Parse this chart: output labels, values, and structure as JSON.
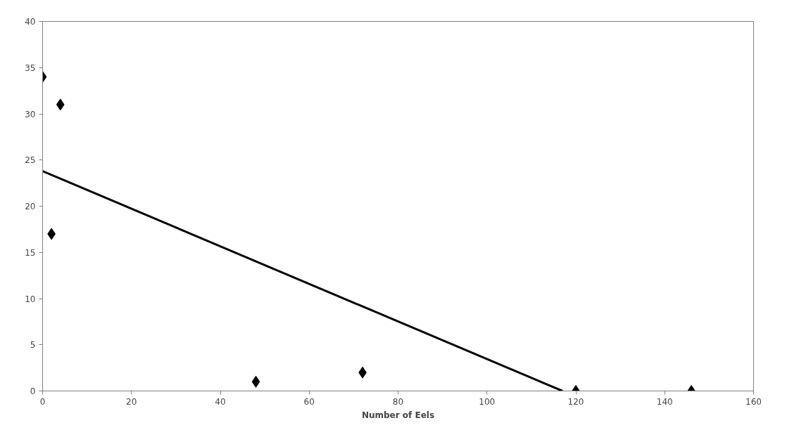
{
  "chart_data": {
    "type": "scatter",
    "xlabel": "Number of Eels",
    "x": [
      0,
      2,
      4,
      48,
      72,
      120,
      146
    ],
    "series": [
      {
        "color": "#000000",
        "marker": "diamond",
        "values": [
          34,
          17,
          31,
          1,
          2,
          0,
          0
        ]
      },
      {
        "type": "line",
        "color": "#000000",
        "line_style": "solid",
        "marker": "none",
        "x": [
          0,
          117
        ],
        "values": [
          23.8,
          0
        ]
      }
    ],
    "xlim": [
      0,
      160
    ],
    "xticks": [
      0,
      20,
      40,
      60,
      80,
      100,
      120,
      140,
      160
    ],
    "ylim": [
      0,
      40
    ],
    "yticks": [
      0,
      5,
      10,
      15,
      20,
      25,
      30,
      35,
      40
    ],
    "grid": false
  }
}
